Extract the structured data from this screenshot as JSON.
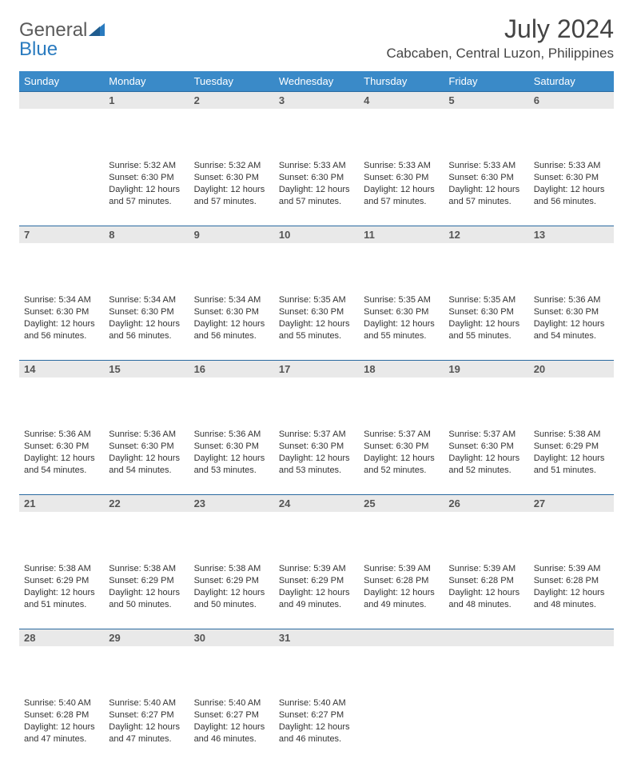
{
  "brand": {
    "name_part1": "General",
    "name_part2": "Blue"
  },
  "title": "July 2024",
  "location": "Cabcaben, Central Luzon, Philippines",
  "colors": {
    "header_bg": "#3a8ac8",
    "header_text": "#ffffff",
    "daynum_bg": "#e9e9e9",
    "daynum_text": "#555555",
    "cell_border": "#2a6aa0",
    "brand_gray": "#5a5a5a",
    "brand_blue": "#2a7bbf"
  },
  "day_header_fontsize": 13,
  "daynum_fontsize": 13,
  "cell_fontsize": 11,
  "days_of_week": [
    "Sunday",
    "Monday",
    "Tuesday",
    "Wednesday",
    "Thursday",
    "Friday",
    "Saturday"
  ],
  "weeks": [
    [
      null,
      {
        "n": "1",
        "sunrise": "Sunrise: 5:32 AM",
        "sunset": "Sunset: 6:30 PM",
        "daylight": "Daylight: 12 hours and 57 minutes."
      },
      {
        "n": "2",
        "sunrise": "Sunrise: 5:32 AM",
        "sunset": "Sunset: 6:30 PM",
        "daylight": "Daylight: 12 hours and 57 minutes."
      },
      {
        "n": "3",
        "sunrise": "Sunrise: 5:33 AM",
        "sunset": "Sunset: 6:30 PM",
        "daylight": "Daylight: 12 hours and 57 minutes."
      },
      {
        "n": "4",
        "sunrise": "Sunrise: 5:33 AM",
        "sunset": "Sunset: 6:30 PM",
        "daylight": "Daylight: 12 hours and 57 minutes."
      },
      {
        "n": "5",
        "sunrise": "Sunrise: 5:33 AM",
        "sunset": "Sunset: 6:30 PM",
        "daylight": "Daylight: 12 hours and 57 minutes."
      },
      {
        "n": "6",
        "sunrise": "Sunrise: 5:33 AM",
        "sunset": "Sunset: 6:30 PM",
        "daylight": "Daylight: 12 hours and 56 minutes."
      }
    ],
    [
      {
        "n": "7",
        "sunrise": "Sunrise: 5:34 AM",
        "sunset": "Sunset: 6:30 PM",
        "daylight": "Daylight: 12 hours and 56 minutes."
      },
      {
        "n": "8",
        "sunrise": "Sunrise: 5:34 AM",
        "sunset": "Sunset: 6:30 PM",
        "daylight": "Daylight: 12 hours and 56 minutes."
      },
      {
        "n": "9",
        "sunrise": "Sunrise: 5:34 AM",
        "sunset": "Sunset: 6:30 PM",
        "daylight": "Daylight: 12 hours and 56 minutes."
      },
      {
        "n": "10",
        "sunrise": "Sunrise: 5:35 AM",
        "sunset": "Sunset: 6:30 PM",
        "daylight": "Daylight: 12 hours and 55 minutes."
      },
      {
        "n": "11",
        "sunrise": "Sunrise: 5:35 AM",
        "sunset": "Sunset: 6:30 PM",
        "daylight": "Daylight: 12 hours and 55 minutes."
      },
      {
        "n": "12",
        "sunrise": "Sunrise: 5:35 AM",
        "sunset": "Sunset: 6:30 PM",
        "daylight": "Daylight: 12 hours and 55 minutes."
      },
      {
        "n": "13",
        "sunrise": "Sunrise: 5:36 AM",
        "sunset": "Sunset: 6:30 PM",
        "daylight": "Daylight: 12 hours and 54 minutes."
      }
    ],
    [
      {
        "n": "14",
        "sunrise": "Sunrise: 5:36 AM",
        "sunset": "Sunset: 6:30 PM",
        "daylight": "Daylight: 12 hours and 54 minutes."
      },
      {
        "n": "15",
        "sunrise": "Sunrise: 5:36 AM",
        "sunset": "Sunset: 6:30 PM",
        "daylight": "Daylight: 12 hours and 54 minutes."
      },
      {
        "n": "16",
        "sunrise": "Sunrise: 5:36 AM",
        "sunset": "Sunset: 6:30 PM",
        "daylight": "Daylight: 12 hours and 53 minutes."
      },
      {
        "n": "17",
        "sunrise": "Sunrise: 5:37 AM",
        "sunset": "Sunset: 6:30 PM",
        "daylight": "Daylight: 12 hours and 53 minutes."
      },
      {
        "n": "18",
        "sunrise": "Sunrise: 5:37 AM",
        "sunset": "Sunset: 6:30 PM",
        "daylight": "Daylight: 12 hours and 52 minutes."
      },
      {
        "n": "19",
        "sunrise": "Sunrise: 5:37 AM",
        "sunset": "Sunset: 6:30 PM",
        "daylight": "Daylight: 12 hours and 52 minutes."
      },
      {
        "n": "20",
        "sunrise": "Sunrise: 5:38 AM",
        "sunset": "Sunset: 6:29 PM",
        "daylight": "Daylight: 12 hours and 51 minutes."
      }
    ],
    [
      {
        "n": "21",
        "sunrise": "Sunrise: 5:38 AM",
        "sunset": "Sunset: 6:29 PM",
        "daylight": "Daylight: 12 hours and 51 minutes."
      },
      {
        "n": "22",
        "sunrise": "Sunrise: 5:38 AM",
        "sunset": "Sunset: 6:29 PM",
        "daylight": "Daylight: 12 hours and 50 minutes."
      },
      {
        "n": "23",
        "sunrise": "Sunrise: 5:38 AM",
        "sunset": "Sunset: 6:29 PM",
        "daylight": "Daylight: 12 hours and 50 minutes."
      },
      {
        "n": "24",
        "sunrise": "Sunrise: 5:39 AM",
        "sunset": "Sunset: 6:29 PM",
        "daylight": "Daylight: 12 hours and 49 minutes."
      },
      {
        "n": "25",
        "sunrise": "Sunrise: 5:39 AM",
        "sunset": "Sunset: 6:28 PM",
        "daylight": "Daylight: 12 hours and 49 minutes."
      },
      {
        "n": "26",
        "sunrise": "Sunrise: 5:39 AM",
        "sunset": "Sunset: 6:28 PM",
        "daylight": "Daylight: 12 hours and 48 minutes."
      },
      {
        "n": "27",
        "sunrise": "Sunrise: 5:39 AM",
        "sunset": "Sunset: 6:28 PM",
        "daylight": "Daylight: 12 hours and 48 minutes."
      }
    ],
    [
      {
        "n": "28",
        "sunrise": "Sunrise: 5:40 AM",
        "sunset": "Sunset: 6:28 PM",
        "daylight": "Daylight: 12 hours and 47 minutes."
      },
      {
        "n": "29",
        "sunrise": "Sunrise: 5:40 AM",
        "sunset": "Sunset: 6:27 PM",
        "daylight": "Daylight: 12 hours and 47 minutes."
      },
      {
        "n": "30",
        "sunrise": "Sunrise: 5:40 AM",
        "sunset": "Sunset: 6:27 PM",
        "daylight": "Daylight: 12 hours and 46 minutes."
      },
      {
        "n": "31",
        "sunrise": "Sunrise: 5:40 AM",
        "sunset": "Sunset: 6:27 PM",
        "daylight": "Daylight: 12 hours and 46 minutes."
      },
      null,
      null,
      null
    ]
  ]
}
